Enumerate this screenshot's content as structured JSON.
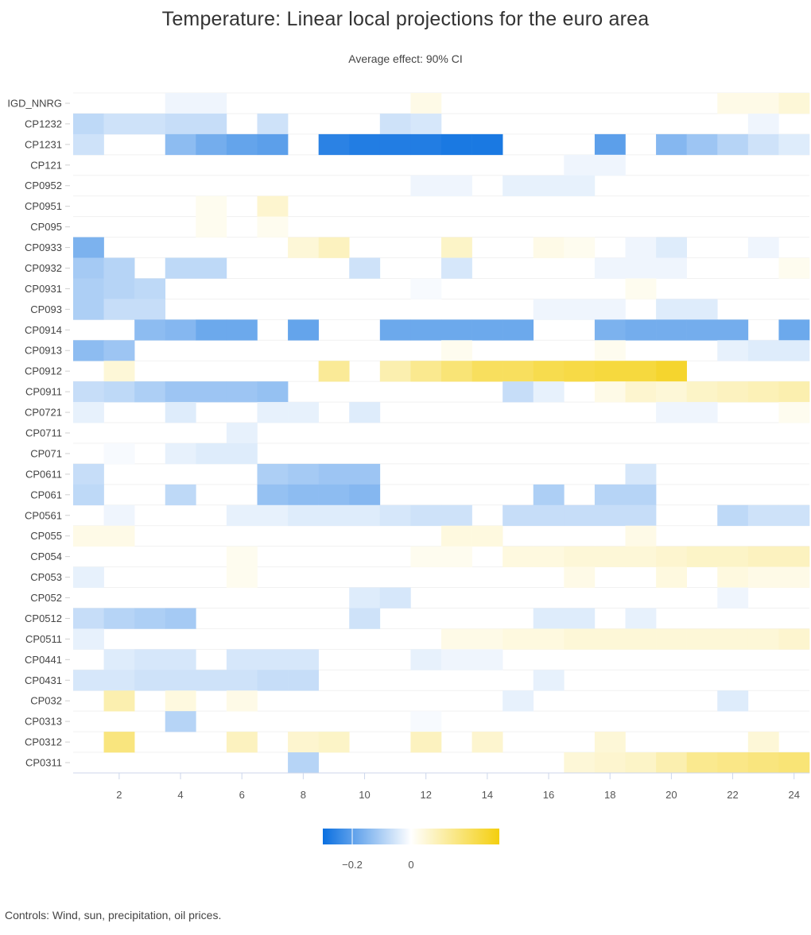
{
  "title": "Temperature: Linear local projections for the euro area",
  "subtitle": "Average effect: 90% CI",
  "footer": "Controls: Wind, sun, precipitation, oil prices.",
  "colors": {
    "negative": "#0a6fe0",
    "neutral": "#ffffff",
    "positive": "#f4cf0e"
  },
  "chart_data": {
    "type": "heatmap",
    "title": "Temperature: Linear local projections for the euro area",
    "subtitle": "Average effect: 90% CI",
    "xlabel": "",
    "ylabel": "",
    "x_ticks": [
      2,
      4,
      6,
      8,
      10,
      12,
      14,
      16,
      18,
      20,
      22,
      24
    ],
    "x_range": [
      1,
      24
    ],
    "legend": {
      "min": -0.3,
      "max": 0.3,
      "ticks": [
        -0.2,
        0
      ],
      "tick_labels": [
        "−0.2",
        "0"
      ],
      "placement": "bottom"
    },
    "rows": [
      {
        "name": "IGD_NNRG",
        "values": [
          0,
          0,
          0,
          -0.02,
          -0.02,
          0,
          0,
          0,
          0,
          0,
          0,
          0.03,
          0,
          0,
          0,
          0,
          0,
          0,
          0,
          0,
          0,
          0.03,
          0.03,
          0.05
        ]
      },
      {
        "name": "CP1232",
        "values": [
          -0.08,
          -0.06,
          -0.06,
          -0.07,
          -0.07,
          0,
          -0.06,
          0,
          0,
          0,
          -0.06,
          -0.05,
          0,
          0,
          0,
          0,
          0,
          0,
          0,
          0,
          0,
          0,
          -0.02,
          0
        ]
      },
      {
        "name": "CP1231",
        "values": [
          -0.06,
          0,
          0,
          -0.14,
          -0.17,
          -0.19,
          -0.2,
          0,
          -0.26,
          -0.27,
          -0.27,
          -0.27,
          -0.28,
          -0.28,
          0,
          0,
          0,
          -0.2,
          0,
          -0.15,
          -0.12,
          -0.09,
          -0.06,
          -0.04
        ]
      },
      {
        "name": "CP121",
        "values": [
          0,
          0,
          0,
          0,
          0,
          0,
          0,
          0,
          0,
          0,
          0,
          0,
          0,
          0,
          0,
          0,
          -0.02,
          -0.02,
          0,
          0,
          0,
          0,
          0,
          0
        ]
      },
      {
        "name": "CP0952",
        "values": [
          0,
          0,
          0,
          0,
          0,
          0,
          0,
          0,
          0,
          0,
          0,
          -0.02,
          -0.02,
          0,
          -0.03,
          -0.03,
          -0.03,
          0,
          0,
          0,
          0,
          0,
          0,
          0
        ]
      },
      {
        "name": "CP0951",
        "values": [
          0,
          0,
          0,
          0,
          0.02,
          0,
          0.06,
          0,
          0,
          0,
          0,
          0,
          0,
          0,
          0,
          0,
          0,
          0,
          0,
          0,
          0,
          0,
          0,
          0
        ]
      },
      {
        "name": "CP095",
        "values": [
          0,
          0,
          0,
          0,
          0.02,
          0,
          0.02,
          0,
          0,
          0,
          0,
          0,
          0,
          0,
          0,
          0,
          0,
          0,
          0,
          0,
          0,
          0,
          0,
          0
        ]
      },
      {
        "name": "CP0933",
        "values": [
          -0.16,
          0,
          0,
          0,
          0,
          0,
          0,
          0.05,
          0.08,
          0,
          0,
          0,
          0.07,
          0,
          0,
          0.03,
          0.02,
          0,
          -0.02,
          -0.04,
          0,
          0,
          -0.02,
          0
        ]
      },
      {
        "name": "CP0932",
        "values": [
          -0.11,
          -0.09,
          0,
          -0.08,
          -0.08,
          0,
          0,
          0,
          0,
          -0.06,
          0,
          0,
          -0.05,
          0,
          0,
          0,
          0,
          -0.02,
          -0.02,
          -0.02,
          0,
          0,
          0,
          0.02
        ]
      },
      {
        "name": "CP0931",
        "values": [
          -0.1,
          -0.09,
          -0.08,
          0,
          0,
          0,
          0,
          0,
          0,
          0,
          0,
          -0.01,
          0,
          0,
          0,
          0,
          0,
          0,
          0.02,
          0,
          0,
          0,
          0,
          0
        ]
      },
      {
        "name": "CP093",
        "values": [
          -0.1,
          -0.07,
          -0.07,
          0,
          0,
          0,
          0,
          0,
          0,
          0,
          0,
          0,
          0,
          0,
          0,
          -0.02,
          -0.02,
          -0.02,
          0,
          -0.04,
          -0.04,
          0,
          0,
          0
        ]
      },
      {
        "name": "CP0914",
        "values": [
          0,
          0,
          -0.14,
          -0.15,
          -0.18,
          -0.18,
          0,
          -0.19,
          0,
          0,
          -0.18,
          -0.18,
          -0.18,
          -0.18,
          -0.18,
          0,
          0,
          -0.16,
          -0.17,
          -0.17,
          -0.17,
          -0.17,
          0,
          -0.18
        ]
      },
      {
        "name": "CP0913",
        "values": [
          -0.14,
          -0.12,
          0,
          0,
          0,
          0,
          0,
          0,
          0,
          0,
          0,
          0,
          0.02,
          0,
          0,
          0,
          0,
          0.02,
          0,
          0,
          0,
          -0.03,
          -0.04,
          -0.04
        ]
      },
      {
        "name": "CP0912",
        "values": [
          0,
          0.05,
          0,
          0,
          0,
          0,
          0,
          0,
          0.13,
          0,
          0.1,
          0.14,
          0.17,
          0.2,
          0.2,
          0.22,
          0.23,
          0.24,
          0.24,
          0.26,
          0,
          0,
          0,
          0
        ]
      },
      {
        "name": "CP0911",
        "values": [
          -0.07,
          -0.08,
          -0.1,
          -0.12,
          -0.12,
          -0.12,
          -0.13,
          0,
          0,
          0,
          0,
          0,
          0,
          0,
          -0.07,
          -0.03,
          0,
          0.03,
          0.06,
          0.05,
          0.07,
          0.08,
          0.09,
          0.1
        ]
      },
      {
        "name": "CP0721",
        "values": [
          -0.03,
          0,
          0,
          -0.04,
          0,
          0,
          -0.03,
          -0.03,
          0,
          -0.04,
          0,
          0,
          0,
          0,
          0,
          0,
          0,
          0,
          0,
          -0.02,
          -0.02,
          0,
          0,
          0.02
        ]
      },
      {
        "name": "CP0711",
        "values": [
          0,
          0,
          0,
          0,
          0,
          -0.03,
          0,
          0,
          0,
          0,
          0,
          0,
          0,
          0,
          0,
          0,
          0,
          0,
          0,
          0,
          0,
          0,
          0,
          0
        ]
      },
      {
        "name": "CP071",
        "values": [
          0,
          -0.01,
          0,
          -0.03,
          -0.04,
          -0.04,
          0,
          0,
          0,
          0,
          0,
          0,
          0,
          0,
          0,
          0,
          0,
          0,
          0,
          0,
          0,
          0,
          0,
          0
        ]
      },
      {
        "name": "CP0611",
        "values": [
          -0.07,
          0,
          0,
          0,
          0,
          0,
          -0.1,
          -0.11,
          -0.12,
          -0.12,
          0,
          0,
          0,
          0,
          0,
          0,
          0,
          0,
          -0.05,
          0,
          0,
          0,
          0,
          0
        ]
      },
      {
        "name": "CP061",
        "values": [
          -0.08,
          0,
          0,
          -0.08,
          0,
          0,
          -0.13,
          -0.14,
          -0.14,
          -0.15,
          0,
          0,
          0,
          0,
          0,
          -0.1,
          0,
          -0.09,
          -0.09,
          0,
          0,
          0,
          0,
          0
        ]
      },
      {
        "name": "CP0561",
        "values": [
          0,
          -0.02,
          0,
          0,
          0,
          -0.03,
          -0.03,
          -0.04,
          -0.04,
          -0.04,
          -0.05,
          -0.06,
          -0.06,
          0,
          -0.07,
          -0.07,
          -0.07,
          -0.07,
          -0.07,
          0,
          0,
          -0.08,
          -0.06,
          -0.06
        ]
      },
      {
        "name": "CP055",
        "values": [
          0.03,
          0.03,
          0,
          0,
          0,
          0,
          0,
          0,
          0,
          0,
          0,
          0,
          0.04,
          0.04,
          0,
          0,
          0,
          0,
          0.03,
          0,
          0,
          0,
          0,
          0
        ]
      },
      {
        "name": "CP054",
        "values": [
          0,
          0,
          0,
          0,
          0,
          0.02,
          0,
          0,
          0,
          0,
          0,
          0.02,
          0.02,
          0,
          0.04,
          0.04,
          0.05,
          0.05,
          0.05,
          0.06,
          0.07,
          0.07,
          0.08,
          0.08
        ]
      },
      {
        "name": "CP053",
        "values": [
          -0.03,
          0,
          0,
          0,
          0,
          0.02,
          0,
          0,
          0,
          0,
          0,
          0,
          0,
          0,
          0,
          0,
          0.03,
          0,
          0,
          0.04,
          0,
          0.04,
          0.03,
          0.03
        ]
      },
      {
        "name": "CP052",
        "values": [
          0,
          0,
          0,
          0,
          0,
          0,
          0,
          0,
          0,
          -0.04,
          -0.05,
          0,
          0,
          0,
          0,
          0,
          0,
          0,
          0,
          0,
          0,
          -0.02,
          0,
          0
        ]
      },
      {
        "name": "CP0512",
        "values": [
          -0.07,
          -0.09,
          -0.1,
          -0.11,
          0,
          0,
          0,
          0,
          0,
          -0.06,
          0,
          0,
          0,
          0,
          0,
          -0.04,
          -0.04,
          0,
          -0.03,
          0,
          0,
          0,
          0,
          0
        ]
      },
      {
        "name": "CP0511",
        "values": [
          -0.03,
          0,
          0,
          0,
          0,
          0,
          0,
          0,
          0,
          0,
          0,
          0,
          0.03,
          0.03,
          0.04,
          0.04,
          0.05,
          0.05,
          0.05,
          0.05,
          0.05,
          0.05,
          0.05,
          0.06
        ]
      },
      {
        "name": "CP0441",
        "values": [
          0,
          -0.04,
          -0.05,
          -0.05,
          0,
          -0.05,
          -0.05,
          -0.05,
          0,
          0,
          0,
          -0.03,
          -0.02,
          -0.02,
          0,
          0,
          0,
          0,
          0,
          0,
          0,
          0,
          0,
          0
        ]
      },
      {
        "name": "CP0431",
        "values": [
          -0.05,
          -0.05,
          -0.06,
          -0.06,
          -0.06,
          -0.06,
          -0.07,
          -0.07,
          0,
          0,
          0,
          0,
          0,
          0,
          0,
          -0.03,
          0,
          0,
          0,
          0,
          0,
          0,
          0,
          0
        ]
      },
      {
        "name": "CP032",
        "values": [
          0,
          0.1,
          0,
          0.04,
          0,
          0.03,
          0,
          0,
          0,
          0,
          0,
          0,
          0,
          0,
          -0.03,
          0,
          0,
          0,
          0,
          0,
          0,
          -0.04,
          0,
          0
        ]
      },
      {
        "name": "CP0313",
        "values": [
          0,
          0,
          0,
          -0.09,
          0,
          0,
          0,
          0,
          0,
          0,
          0,
          -0.01,
          0,
          0,
          0,
          0,
          0,
          0,
          0,
          0,
          0,
          0,
          0,
          0
        ]
      },
      {
        "name": "CP0312",
        "values": [
          0,
          0.16,
          0,
          0,
          0,
          0.08,
          0,
          0.06,
          0.07,
          0,
          0,
          0.08,
          0,
          0.06,
          0,
          0,
          0,
          0.05,
          0,
          0,
          0,
          0,
          0.05,
          0
        ]
      },
      {
        "name": "CP0311",
        "values": [
          0,
          0,
          0,
          0,
          0,
          0,
          0,
          -0.09,
          0,
          0,
          0,
          0,
          0,
          0,
          0,
          0,
          0.05,
          0.06,
          0.07,
          0.1,
          0.14,
          0.15,
          0.16,
          0.17
        ]
      }
    ]
  }
}
